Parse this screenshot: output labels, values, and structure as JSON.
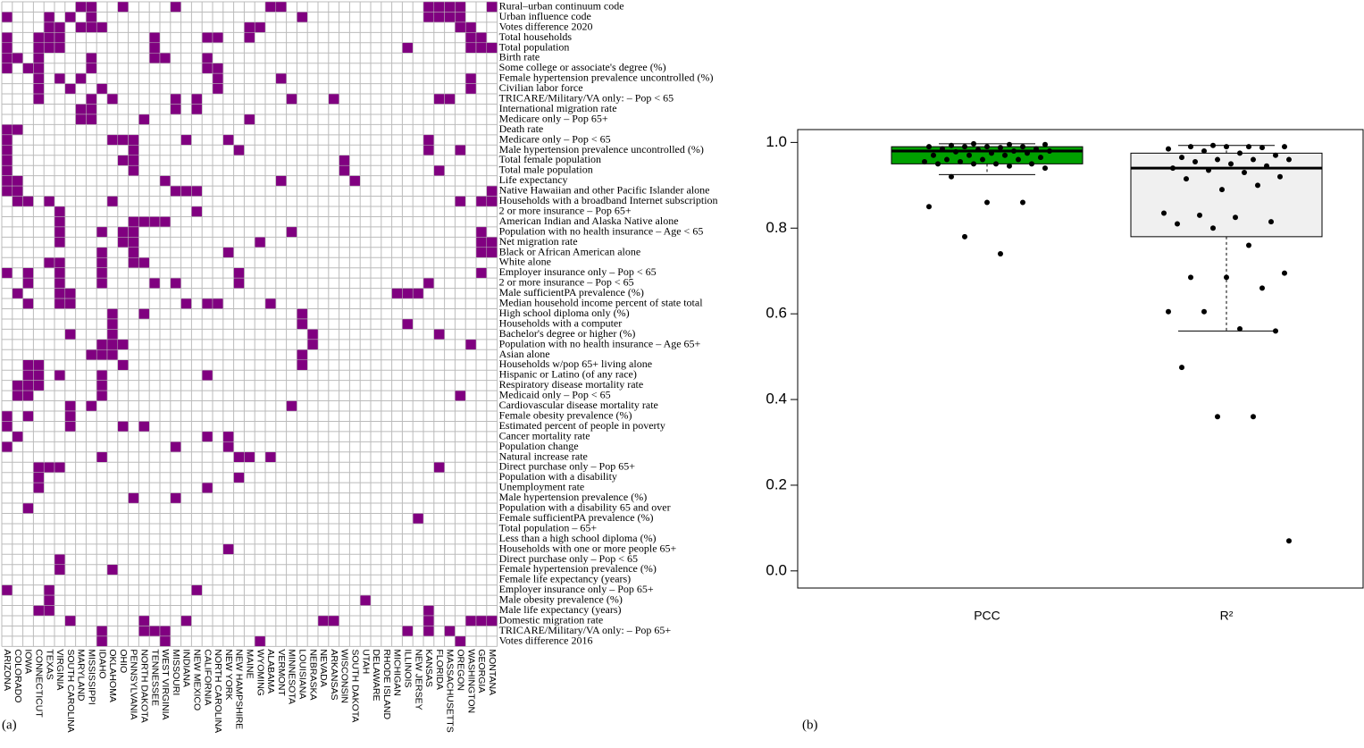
{
  "chart_data": [
    {
      "type": "heatmap",
      "label": "(a)",
      "color": "#800080",
      "rows": [
        "Rural–urban continuum code",
        "Urban influence code",
        "Votes difference 2020",
        "Total households",
        "Total population",
        "Birth rate",
        "Some college or associate's degree (%)",
        "Female hypertension prevalence uncontrolled (%)",
        "Civilian labor force",
        "TRICARE/Military/VA only: – Pop < 65",
        "International migration rate",
        "Medicare only – Pop 65+",
        "Death rate",
        "Medicare only – Pop < 65",
        "Male hypertension prevalence uncontrolled (%)",
        "Total female population",
        "Total male population",
        "Life expectancy",
        "Native Hawaiian and other Pacific Islander alone",
        "Households with a broadband Internet subscription",
        "2 or more insurance – Pop 65+",
        "American Indian and Alaska Native alone",
        "Population with no health insurance – Age < 65",
        "Net migration rate",
        "Black or African American alone",
        "White alone",
        "Employer insurance only – Pop < 65",
        "2 or more insurance – Pop < 65",
        "Male sufficientPA prevalence (%)",
        "Median household income percent of state total",
        "High school diploma only (%)",
        "Households with a computer",
        "Bachelor's degree or higher (%)",
        "Population with no health insurance – Age 65+",
        "Asian alone",
        "Households w/pop 65+ living alone",
        "Hispanic or Latino (of any race)",
        "Respiratory disease mortality rate",
        "Medicaid only – Pop < 65",
        "Cardiovascular disease mortality rate",
        "Female obesity prevalence (%)",
        "Estimated percent of people in poverty",
        "Cancer mortality rate",
        "Population change",
        "Natural increase rate",
        "Direct purchase only – Pop 65+",
        "Population with a disability",
        "Unemployment rate",
        "Male hypertension prevalence (%)",
        "Population with a disability 65 and over",
        "Female sufficientPA prevalence (%)",
        "Total population – 65+",
        "Less than a high school diploma (%)",
        "Households with one or more people 65+",
        "Direct purchase only – Pop < 65",
        "Female hypertension prevalence (%)",
        "Female life expectancy (years)",
        "Employer insurance only – Pop 65+",
        "Male obesity prevalence (%)",
        "Male life expectancy (years)",
        "Domestic migration rate",
        "TRICARE/Military/VA only: – Pop 65+",
        "Votes difference 2016"
      ],
      "columns": [
        "ARIZONA",
        "COLORADO",
        "IOWA",
        "CONNECTICUT",
        "TEXAS",
        "VIRGINIA",
        "SOUTH CAROLINA",
        "MARYLAND",
        "MISSISSIPPI",
        "IDAHO",
        "OKLAHOMA",
        "OHIO",
        "PENNSYLVANIA",
        "NORTH DAKOTA",
        "TENNESSEE",
        "WEST VIRGINIA",
        "MISSOURI",
        "INDIANA",
        "NEW MEXICO",
        "CALIFORNIA",
        "NORTH CAROLINA",
        "NEW YORK",
        "NEW HAMPSHIRE",
        "MAINE",
        "WYOMING",
        "ALABAMA",
        "VERMONT",
        "MINNESOTA",
        "LOUISIANA",
        "NEBRASKA",
        "NEVADA",
        "ARKANSAS",
        "WISCONSIN",
        "SOUTH DAKOTA",
        "UTAH",
        "DELAWARE",
        "RHODE ISLAND",
        "MICHIGAN",
        "ILLINOIS",
        "NEW JERSEY",
        "KANSAS",
        "FLORIDA",
        "MASSACHUSETTS",
        "OREGON",
        "WASHINGTON",
        "GEORGIA",
        "MONTANA"
      ],
      "marked": [
        [
          7,
          8,
          11,
          16,
          25,
          26,
          40,
          41,
          42,
          43,
          46
        ],
        [
          0,
          4,
          6,
          8,
          28,
          40,
          41,
          42,
          43
        ],
        [
          4,
          5,
          7,
          8,
          9,
          23,
          24,
          43,
          44
        ],
        [
          0,
          3,
          4,
          5,
          14,
          19,
          20,
          23,
          44,
          45
        ],
        [
          0,
          3,
          4,
          5,
          14,
          38,
          44,
          45,
          46
        ],
        [
          0,
          1,
          3,
          8,
          14,
          15,
          19
        ],
        [
          0,
          2,
          3,
          8,
          19,
          20
        ],
        [
          3,
          5,
          7,
          20,
          26,
          44
        ],
        [
          3,
          6,
          9,
          20,
          44
        ],
        [
          3,
          8,
          10,
          16,
          18,
          27,
          31,
          41,
          42
        ],
        [
          7,
          8,
          16,
          18
        ],
        [
          7,
          8,
          13,
          23
        ],
        [
          0,
          1
        ],
        [
          0,
          10,
          11,
          12,
          17,
          21,
          40
        ],
        [
          0,
          12,
          22,
          40,
          43
        ],
        [
          0,
          11,
          12,
          32
        ],
        [
          0,
          12,
          32,
          41
        ],
        [
          0,
          1,
          15,
          26,
          33
        ],
        [
          0,
          1,
          16,
          17,
          18,
          46
        ],
        [
          1,
          2,
          4,
          10,
          43,
          45,
          46
        ],
        [
          5,
          18
        ],
        [
          5,
          12,
          13,
          14,
          15
        ],
        [
          5,
          9,
          11,
          12,
          27,
          45
        ],
        [
          5,
          11,
          12,
          24,
          45,
          46
        ],
        [
          9,
          12,
          21,
          45,
          46
        ],
        [
          4,
          5,
          9,
          12,
          13
        ],
        [
          0,
          2,
          5,
          9,
          22,
          45
        ],
        [
          2,
          5,
          9,
          14,
          16,
          22,
          40
        ],
        [
          1,
          5,
          6,
          37,
          38,
          39
        ],
        [
          2,
          5,
          6,
          17,
          19,
          20,
          25
        ],
        [
          10,
          13,
          28
        ],
        [
          10,
          28,
          38
        ],
        [
          6,
          10,
          29,
          41
        ],
        [
          9,
          10,
          11,
          29,
          44
        ],
        [
          8,
          9,
          10,
          28
        ],
        [
          2,
          3,
          11,
          28
        ],
        [
          2,
          3,
          5,
          9,
          19
        ],
        [
          1,
          2,
          3,
          9
        ],
        [
          1,
          2,
          9,
          43
        ],
        [
          6,
          8,
          27
        ],
        [
          0,
          2,
          6
        ],
        [
          0,
          6,
          11,
          13
        ],
        [
          1,
          19,
          21
        ],
        [
          0,
          16,
          21
        ],
        [
          9,
          22,
          23,
          25
        ],
        [
          3,
          4,
          5,
          41
        ],
        [
          3,
          22
        ],
        [
          3,
          19
        ],
        [
          12,
          16
        ],
        [
          2
        ],
        [
          39
        ],
        [],
        [],
        [
          21
        ],
        [
          5
        ],
        [
          5,
          10
        ],
        [],
        [
          0,
          4,
          18
        ],
        [
          4,
          34
        ],
        [
          3,
          4,
          40
        ],
        [
          6,
          13,
          17,
          30,
          31,
          40,
          44,
          45,
          46
        ],
        [
          9,
          13,
          14,
          15,
          38,
          40,
          42
        ],
        [
          9,
          15,
          24,
          43
        ]
      ]
    },
    {
      "type": "box",
      "label": "(b)",
      "categories": [
        "PCC",
        "R²"
      ],
      "colors": [
        "#00a000",
        "#f0f0f0"
      ],
      "boxes": [
        {
          "whisker_low": 0.925,
          "q1": 0.95,
          "median": 0.98,
          "q3": 0.99,
          "whisker_high": 0.997
        },
        {
          "whisker_low": 0.56,
          "q1": 0.78,
          "median": 0.94,
          "q3": 0.975,
          "whisker_high": 0.993
        }
      ],
      "points": [
        [
          0.997,
          0.995,
          0.995,
          0.993,
          0.99,
          0.99,
          0.99,
          0.99,
          0.988,
          0.985,
          0.985,
          0.983,
          0.98,
          0.98,
          0.978,
          0.975,
          0.975,
          0.97,
          0.97,
          0.97,
          0.965,
          0.96,
          0.96,
          0.96,
          0.955,
          0.955,
          0.95,
          0.95,
          0.95,
          0.95,
          0.945,
          0.94,
          0.92,
          0.86,
          0.86,
          0.85,
          0.78,
          0.74
        ],
        [
          0.993,
          0.99,
          0.99,
          0.99,
          0.99,
          0.988,
          0.985,
          0.98,
          0.975,
          0.97,
          0.965,
          0.96,
          0.96,
          0.96,
          0.955,
          0.95,
          0.945,
          0.94,
          0.935,
          0.93,
          0.92,
          0.915,
          0.89,
          0.9,
          0.835,
          0.83,
          0.825,
          0.815,
          0.81,
          0.8,
          0.76,
          0.695,
          0.685,
          0.685,
          0.66,
          0.605,
          0.605,
          0.565,
          0.56,
          0.475,
          0.36,
          0.36,
          0.07
        ]
      ],
      "ylim": [
        -0.04,
        1.03
      ],
      "yticks": [
        {
          "value": 0,
          "label": "0.0"
        },
        {
          "value": 0.2,
          "label": "0.2"
        },
        {
          "value": 0.4,
          "label": "0.4"
        },
        {
          "value": 0.6,
          "label": "0.6"
        },
        {
          "value": 0.8,
          "label": "0.8"
        },
        {
          "value": 1,
          "label": "1.0"
        }
      ]
    }
  ]
}
